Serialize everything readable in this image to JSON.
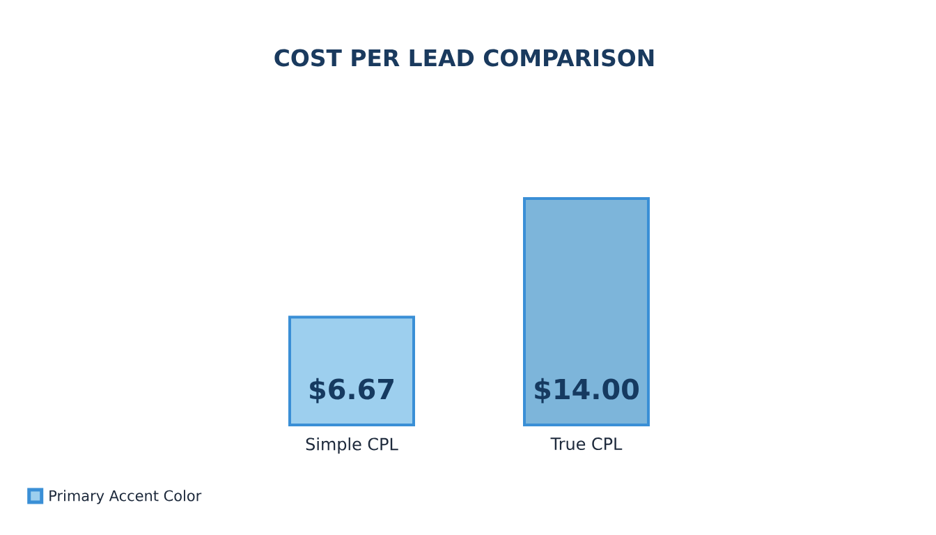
{
  "chart_data": {
    "type": "bar",
    "title": "COST PER LEAD COMPARISON",
    "categories": [
      "Simple CPL",
      "True CPL"
    ],
    "series": [
      {
        "name": "Primary Accent Color",
        "color": "#3a8fd6",
        "colors": [
          "#9dcfee",
          "#7db5da"
        ],
        "values": [
          6.67,
          14.0
        ],
        "value_labels": [
          "$6.67",
          "$14.00"
        ]
      }
    ],
    "legend": "bottom left"
  }
}
